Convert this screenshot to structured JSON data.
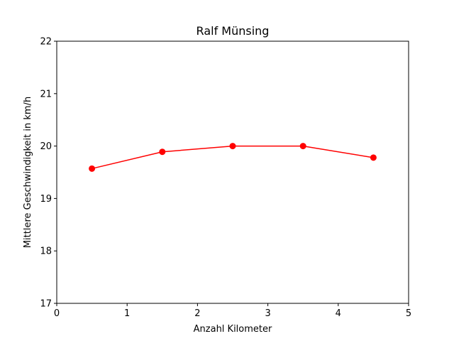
{
  "chart_data": {
    "type": "line",
    "title": "Ralf Münsing",
    "xlabel": "Anzahl Kilometer",
    "ylabel": "Mittlere Geschwindigkeit in km/h",
    "xlim": [
      0,
      5
    ],
    "ylim": [
      17,
      22
    ],
    "xticks": [
      0,
      1,
      2,
      3,
      4,
      5
    ],
    "yticks": [
      17,
      18,
      19,
      20,
      21,
      22
    ],
    "xtick_labels": [
      "0",
      "1",
      "2",
      "3",
      "4",
      "5"
    ],
    "ytick_labels": [
      "17",
      "18",
      "19",
      "20",
      "21",
      "22"
    ],
    "grid": false,
    "series": [
      {
        "name": "Ralf Münsing",
        "color": "#ff0000",
        "marker": "circle",
        "x": [
          0.5,
          1.5,
          2.5,
          3.5,
          4.5
        ],
        "y": [
          19.57,
          19.89,
          20.0,
          20.0,
          19.78
        ]
      }
    ]
  }
}
